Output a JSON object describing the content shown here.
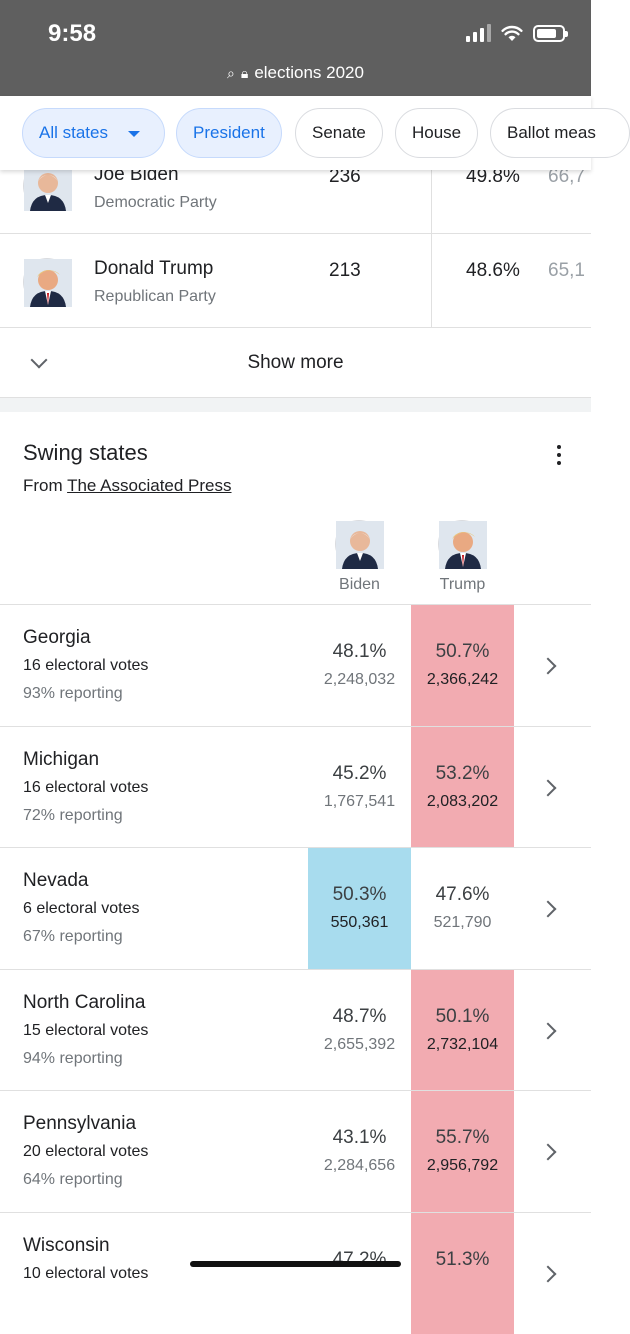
{
  "status_bar": {
    "time": "9:58",
    "url": "elections 2020"
  },
  "filters": [
    {
      "label": "All states",
      "active": true,
      "dropdown": true
    },
    {
      "label": "President",
      "active": true
    },
    {
      "label": "Senate",
      "active": false
    },
    {
      "label": "House",
      "active": false
    },
    {
      "label": "Ballot meas",
      "active": false
    }
  ],
  "candidates": [
    {
      "name": "Joe Biden",
      "party": "Democratic Party",
      "electoral": "236",
      "percent": "49.8%",
      "votes": "66,7"
    },
    {
      "name": "Donald Trump",
      "party": "Republican Party",
      "electoral": "213",
      "percent": "48.6%",
      "votes": "65,1"
    }
  ],
  "show_more_label": "Show more",
  "swing": {
    "title": "Swing states",
    "source_prefix": "From",
    "source_link": "The Associated Press",
    "col_biden": "Biden",
    "col_trump": "Trump",
    "colors": {
      "biden_win": "#a8dcee",
      "trump_win": "#f2abb1"
    },
    "states": [
      {
        "name": "Georgia",
        "ev": "16 electoral votes",
        "reporting": "93% reporting",
        "biden_pct": "48.1%",
        "biden_votes": "2,248,032",
        "trump_pct": "50.7%",
        "trump_votes": "2,366,242",
        "leader": "trump"
      },
      {
        "name": "Michigan",
        "ev": "16 electoral votes",
        "reporting": "72% reporting",
        "biden_pct": "45.2%",
        "biden_votes": "1,767,541",
        "trump_pct": "53.2%",
        "trump_votes": "2,083,202",
        "leader": "trump"
      },
      {
        "name": "Nevada",
        "ev": "6 electoral votes",
        "reporting": "67% reporting",
        "biden_pct": "50.3%",
        "biden_votes": "550,361",
        "trump_pct": "47.6%",
        "trump_votes": "521,790",
        "leader": "biden"
      },
      {
        "name": "North Carolina",
        "ev": "15 electoral votes",
        "reporting": "94% reporting",
        "biden_pct": "48.7%",
        "biden_votes": "2,655,392",
        "trump_pct": "50.1%",
        "trump_votes": "2,732,104",
        "leader": "trump"
      },
      {
        "name": "Pennsylvania",
        "ev": "20 electoral votes",
        "reporting": "64% reporting",
        "biden_pct": "43.1%",
        "biden_votes": "2,284,656",
        "trump_pct": "55.7%",
        "trump_votes": "2,956,792",
        "leader": "trump"
      },
      {
        "name": "Wisconsin",
        "ev": "10 electoral votes",
        "reporting": "",
        "biden_pct": "47.2%",
        "biden_votes": "",
        "trump_pct": "51.3%",
        "trump_votes": "",
        "leader": "trump"
      }
    ]
  }
}
